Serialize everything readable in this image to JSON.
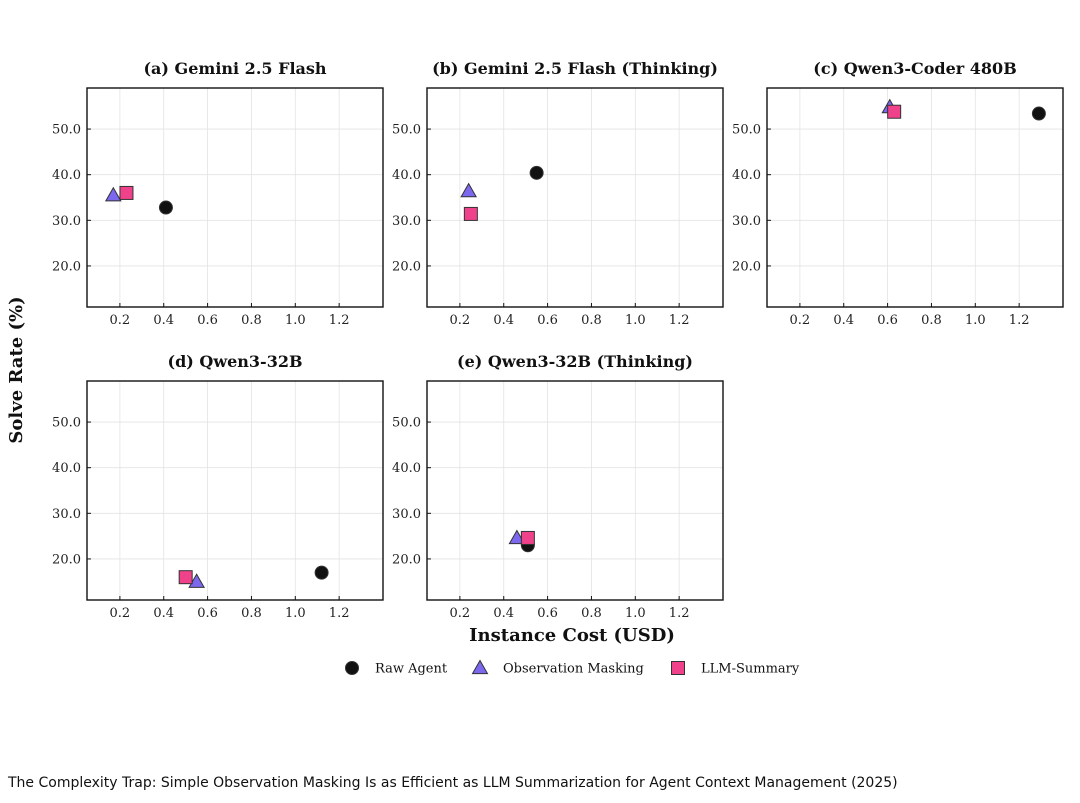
{
  "caption": "The Complexity Trap: Simple Observation Masking Is as Efficient as LLM Summarization for Agent Context Management (2025)",
  "chart_data": {
    "type": "scatter",
    "xlabel": "Instance Cost (USD)",
    "ylabel": "Solve Rate (%)",
    "xlim": [
      0.05,
      1.4
    ],
    "ylim": [
      11,
      59
    ],
    "xticks": [
      0.2,
      0.4,
      0.6,
      0.8,
      1.0,
      1.2
    ],
    "xtick_labels": [
      "0.2",
      "0.4",
      "0.6",
      "0.8",
      "1.0",
      "1.2"
    ],
    "yticks": [
      20,
      30,
      40,
      50
    ],
    "ytick_labels": [
      "20.0",
      "30.0",
      "40.0",
      "50.0"
    ],
    "grid": true,
    "legend_position": "bottom-center",
    "series_styles": [
      {
        "name": "Raw Agent",
        "marker": "circle",
        "color": "#111111"
      },
      {
        "name": "Observation Masking",
        "marker": "triangle",
        "color": "#7b68ee"
      },
      {
        "name": "LLM-Summary",
        "marker": "square",
        "color": "#f0428a"
      }
    ],
    "panels": [
      {
        "title": "(a) Gemini 2.5 Flash",
        "points": [
          {
            "series": "Raw Agent",
            "x": 0.41,
            "y": 32.8
          },
          {
            "series": "Observation Masking",
            "x": 0.17,
            "y": 35.5
          },
          {
            "series": "LLM-Summary",
            "x": 0.23,
            "y": 36.0
          }
        ]
      },
      {
        "title": "(b) Gemini 2.5 Flash (Thinking)",
        "points": [
          {
            "series": "Raw Agent",
            "x": 0.55,
            "y": 40.4
          },
          {
            "series": "Observation Masking",
            "x": 0.24,
            "y": 36.4
          },
          {
            "series": "LLM-Summary",
            "x": 0.25,
            "y": 31.4
          }
        ]
      },
      {
        "title": "(c) Qwen3-Coder 480B",
        "points": [
          {
            "series": "Raw Agent",
            "x": 1.29,
            "y": 53.4
          },
          {
            "series": "Observation Masking",
            "x": 0.61,
            "y": 54.8
          },
          {
            "series": "LLM-Summary",
            "x": 0.63,
            "y": 53.8
          }
        ]
      },
      {
        "title": "(d) Qwen3-32B",
        "points": [
          {
            "series": "Raw Agent",
            "x": 1.12,
            "y": 17.0
          },
          {
            "series": "Observation Masking",
            "x": 0.55,
            "y": 15.0
          },
          {
            "series": "LLM-Summary",
            "x": 0.5,
            "y": 16.0
          }
        ]
      },
      {
        "title": "(e) Qwen3-32B (Thinking)",
        "points": [
          {
            "series": "Raw Agent",
            "x": 0.51,
            "y": 23.0
          },
          {
            "series": "Observation Masking",
            "x": 0.46,
            "y": 24.6
          },
          {
            "series": "LLM-Summary",
            "x": 0.51,
            "y": 24.6
          }
        ]
      }
    ]
  }
}
